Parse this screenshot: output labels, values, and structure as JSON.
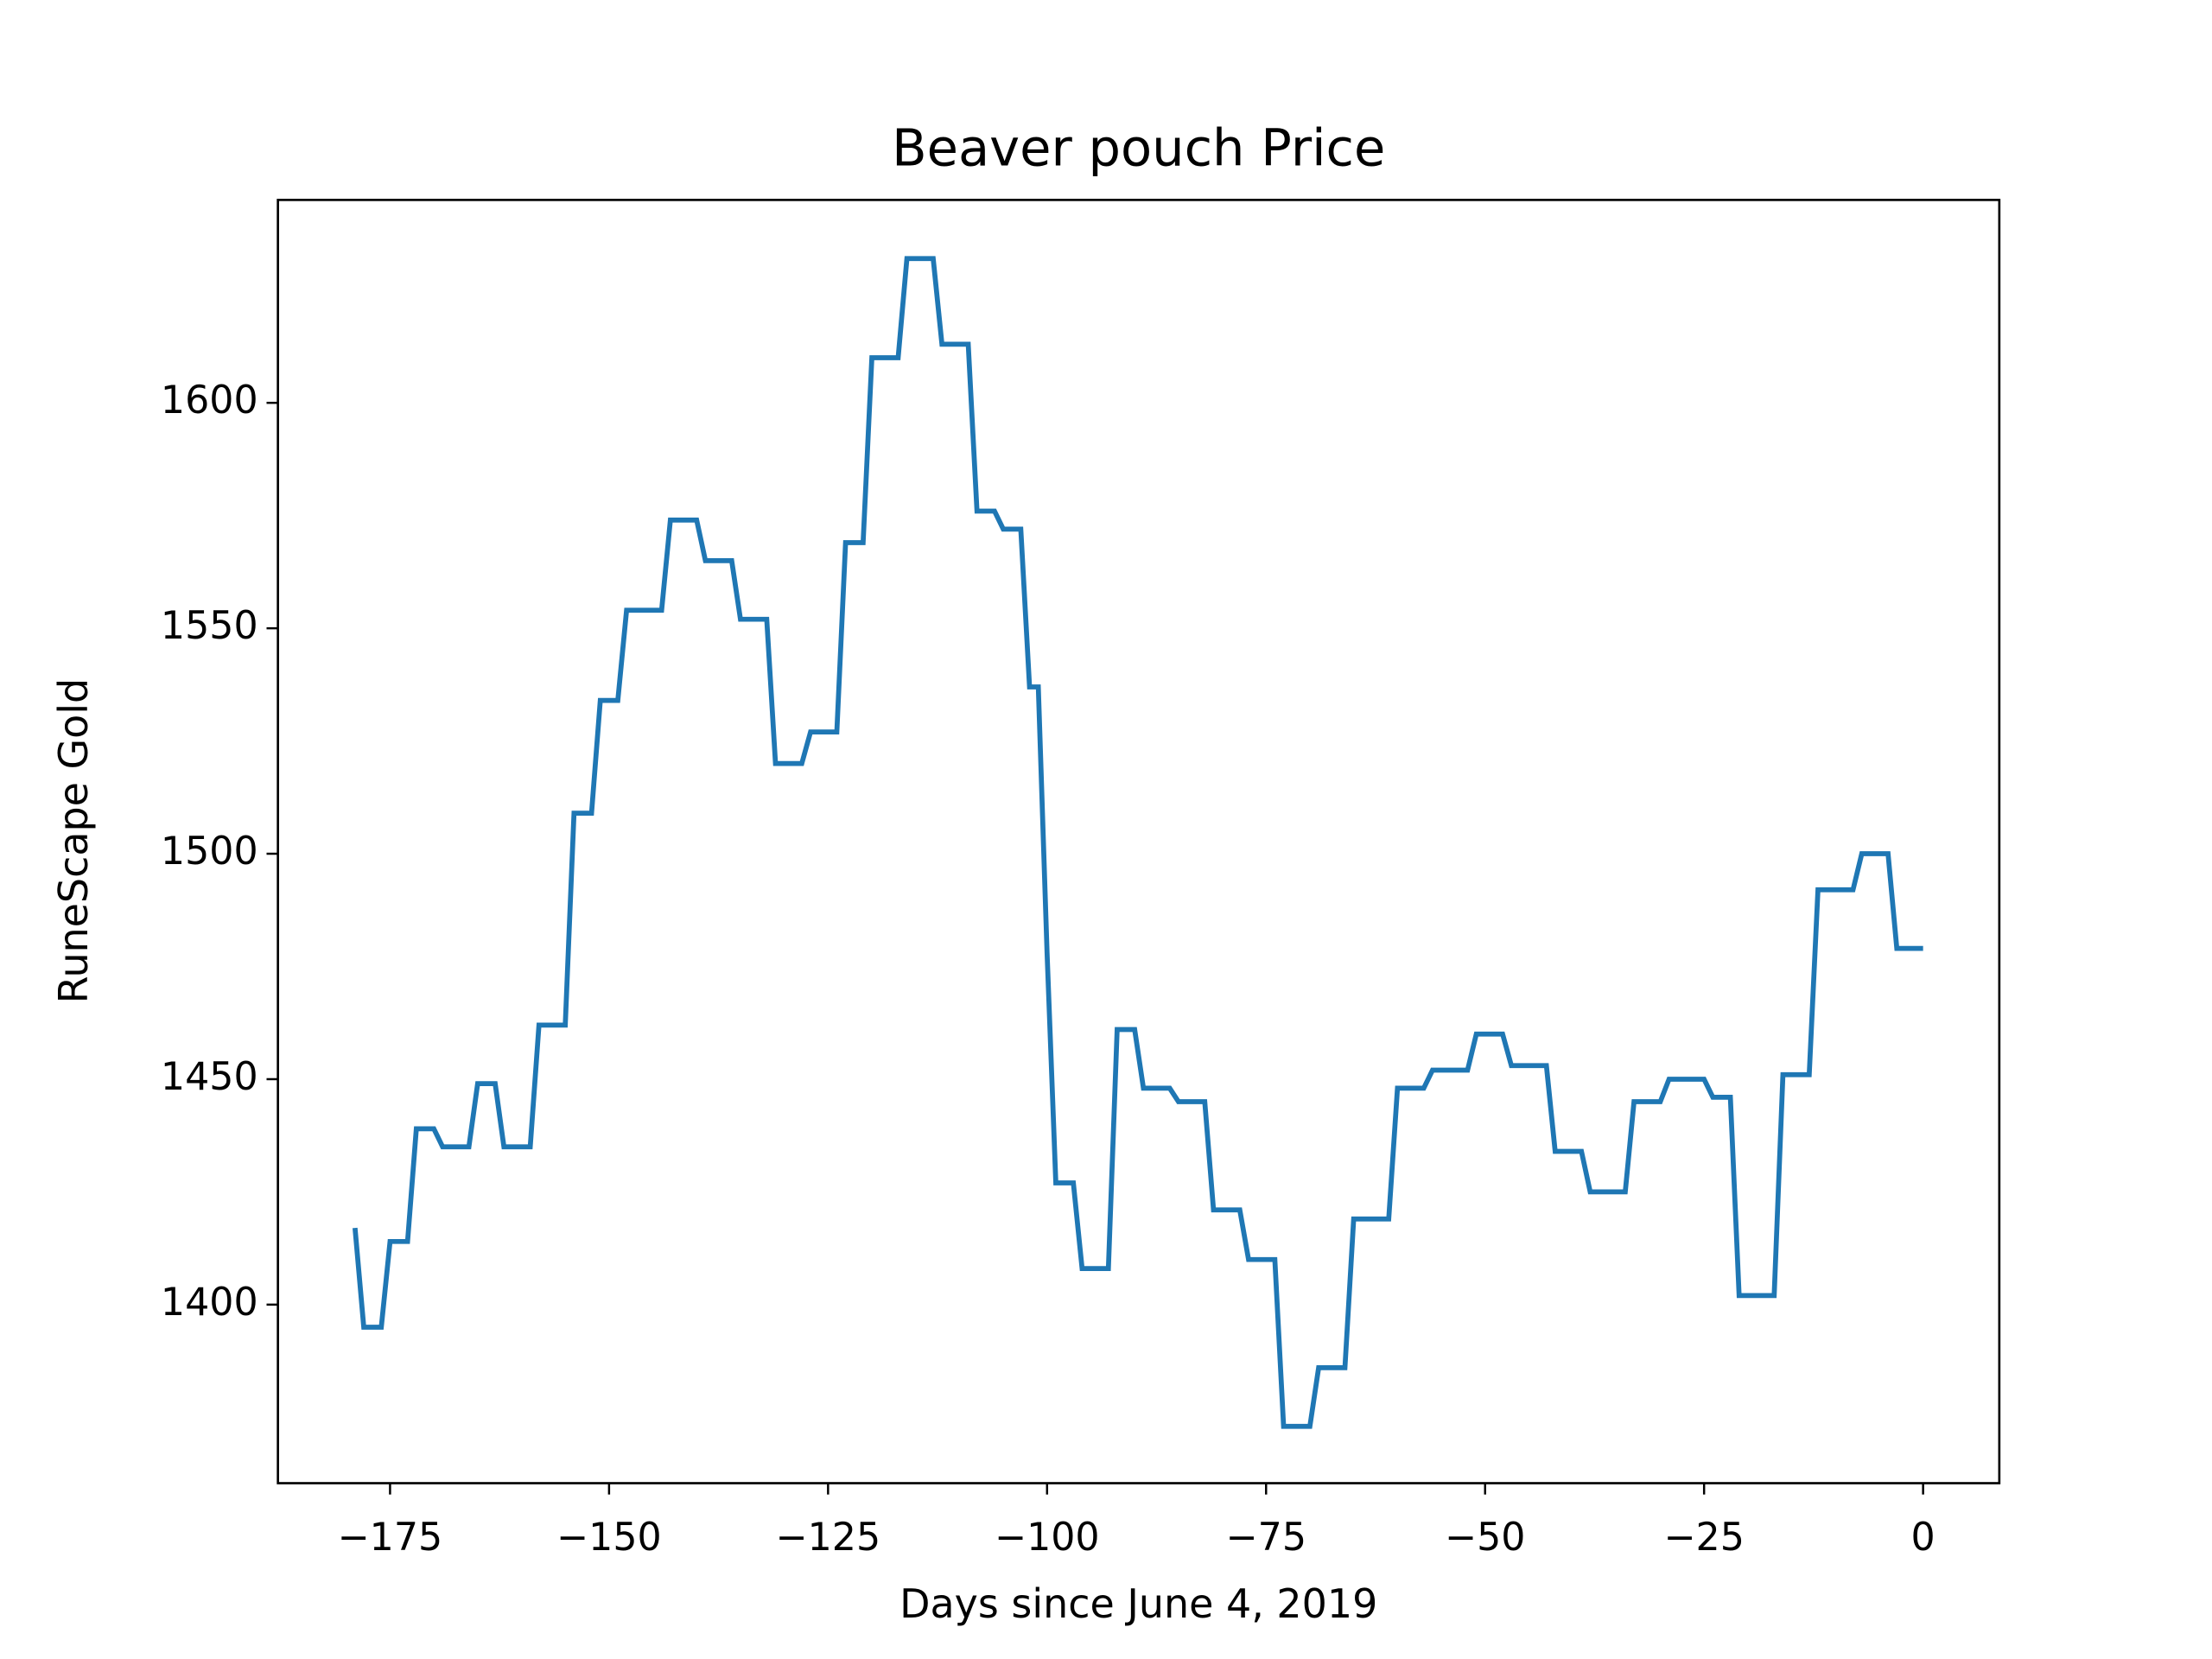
{
  "chart_data": {
    "type": "line",
    "title": "Beaver pouch Price",
    "x_label": "Days since June 4, 2019",
    "y_label": "RuneScape Gold",
    "x": [
      -179,
      -178,
      -176,
      -175,
      -173,
      -172,
      -170,
      -169,
      -166,
      -165,
      -163,
      -162,
      -159,
      -158,
      -155,
      -154,
      -152,
      -151,
      -149,
      -148,
      -144,
      -143,
      -140,
      -139,
      -136,
      -135,
      -132,
      -131,
      -128,
      -127,
      -124,
      -123,
      -121,
      -120,
      -117,
      -116,
      -113,
      -112,
      -109,
      -108,
      -106,
      -105,
      -103,
      -102,
      -101,
      -100,
      -99,
      -97,
      -96,
      -93,
      -92,
      -90,
      -89,
      -86,
      -85,
      -82,
      -81,
      -78,
      -77,
      -74,
      -73,
      -70,
      -69,
      -66,
      -65,
      -61,
      -60,
      -57,
      -56,
      -52,
      -51,
      -48,
      -47,
      -43,
      -42,
      -39,
      -38,
      -34,
      -33,
      -30,
      -29,
      -25,
      -24,
      -22,
      -21,
      -17,
      -16,
      -13,
      -12,
      -8,
      -7,
      -4,
      -3,
      0
    ],
    "series": [
      {
        "name": "Beaver pouch",
        "color": "#1f77b4",
        "values": [
          1417,
          1395,
          1395,
          1414,
          1414,
          1439,
          1439,
          1435,
          1435,
          1449,
          1449,
          1435,
          1435,
          1462,
          1462,
          1509,
          1509,
          1534,
          1534,
          1554,
          1554,
          1574,
          1574,
          1565,
          1565,
          1552,
          1552,
          1520,
          1520,
          1527,
          1527,
          1569,
          1569,
          1610,
          1610,
          1632,
          1632,
          1613,
          1613,
          1576,
          1576,
          1572,
          1572,
          1537,
          1537,
          1478,
          1427,
          1427,
          1408,
          1408,
          1461,
          1461,
          1448,
          1448,
          1445,
          1445,
          1421,
          1421,
          1410,
          1410,
          1373,
          1373,
          1386,
          1386,
          1419,
          1419,
          1448,
          1448,
          1452,
          1452,
          1460,
          1460,
          1453,
          1453,
          1434,
          1434,
          1425,
          1425,
          1445,
          1445,
          1450,
          1450,
          1446,
          1446,
          1402,
          1402,
          1451,
          1451,
          1492,
          1492,
          1500,
          1500,
          1479,
          1479
        ]
      }
    ],
    "xlim": [
      -187.8,
      8.7
    ],
    "ylim": [
      1360.4,
      1645
    ],
    "xticks": [
      {
        "value": -175,
        "label": "−175"
      },
      {
        "value": -150,
        "label": "−150"
      },
      {
        "value": -125,
        "label": "−125"
      },
      {
        "value": -100,
        "label": "−100"
      },
      {
        "value": -75,
        "label": "−75"
      },
      {
        "value": -50,
        "label": "−50"
      },
      {
        "value": -25,
        "label": "−25"
      },
      0
    ],
    "yticks": [
      1400,
      1450,
      1500,
      1550,
      1600
    ]
  }
}
